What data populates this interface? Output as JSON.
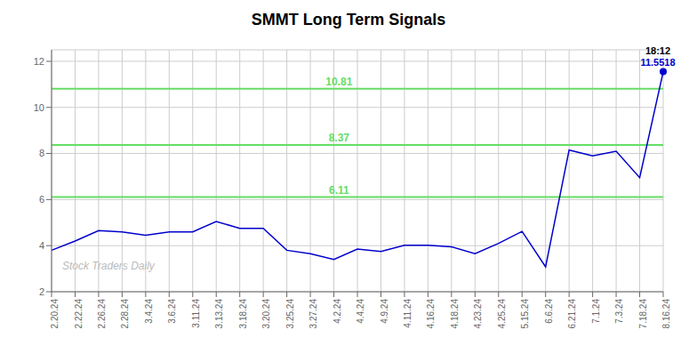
{
  "chart_data": {
    "type": "line",
    "title": "SMMT Long Term Signals",
    "categories": [
      "2.20.24",
      "2.22.24",
      "2.26.24",
      "2.28.24",
      "3.4.24",
      "3.6.24",
      "3.11.24",
      "3.13.24",
      "3.18.24",
      "3.20.24",
      "3.25.24",
      "3.27.24",
      "4.2.24",
      "4.4.24",
      "4.9.24",
      "4.11.24",
      "4.16.24",
      "4.18.24",
      "4.23.24",
      "4.25.24",
      "5.15.24",
      "6.6.24",
      "6.21.24",
      "7.1.24",
      "7.3.24",
      "7.18.24",
      "8.16.24"
    ],
    "values": [
      3.8,
      4.2,
      4.65,
      4.6,
      4.45,
      4.6,
      4.6,
      5.05,
      4.75,
      4.75,
      3.8,
      3.65,
      3.4,
      3.85,
      3.75,
      4.02,
      4.02,
      3.95,
      3.65,
      4.1,
      4.62,
      3.08,
      8.15,
      7.9,
      8.1,
      6.95,
      11.5518
    ],
    "color": "#0000cc",
    "ylim": [
      2.0,
      12.5
    ],
    "yticks": [
      2,
      4,
      6,
      8,
      10,
      12
    ],
    "grid": true,
    "hlines": {
      "values": [
        6.11,
        8.37,
        10.81
      ],
      "color": "#66dd66"
    },
    "watermark": "Stock Traders Daily",
    "annotations": [
      {
        "text": "18:12",
        "color": "#000000"
      },
      {
        "text": "11.5518",
        "color": "#0000cc"
      }
    ]
  }
}
